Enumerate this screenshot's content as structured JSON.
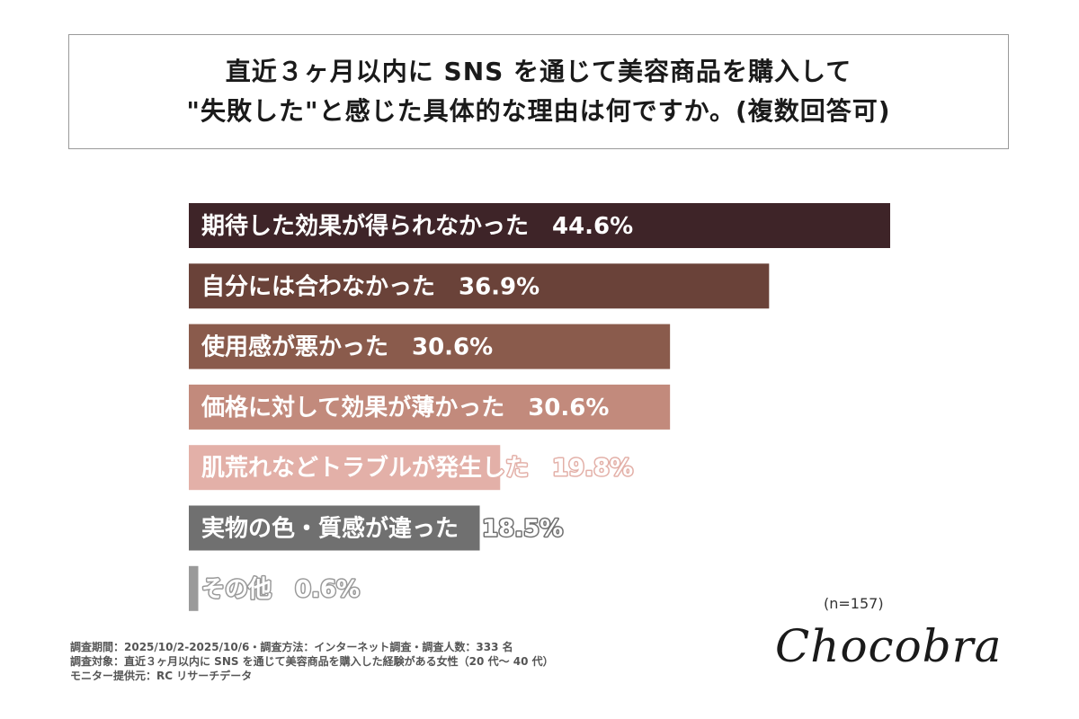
{
  "title": {
    "line1": "直近３ヶ月以内に SNS を通じて美容商品を購入して",
    "line2": "\"失敗した\"と感じた具体的な理由は何ですか。(複数回答可)"
  },
  "chart_data": {
    "type": "bar",
    "orientation": "horizontal",
    "categories": [
      "期待した効果が得られなかった",
      "自分には合わなかった",
      "使用感が悪かった",
      "価格に対して効果が薄かった",
      "肌荒れなどトラブルが発生した",
      "実物の色・質感が違った",
      "その他"
    ],
    "values": [
      44.6,
      36.9,
      30.6,
      30.6,
      19.8,
      18.5,
      0.6
    ],
    "value_suffix": "%",
    "colors": [
      "#3e2428",
      "#6a4239",
      "#8a5b4c",
      "#c28a7c",
      "#e3b0a8",
      "#707070",
      "#9a9a9a"
    ],
    "grid": false,
    "legend": "none"
  },
  "sample_size": "(n=157)",
  "brand": "Chocobra",
  "footnotes": [
    "調査期間：2025/10/2-2025/10/6・調査方法：インターネット調査・調査人数：333 名",
    "調査対象：直近３ヶ月以内に SNS を通じて美容商品を購入した経験がある女性（20 代～ 40 代）",
    "モニター提供元：RC リサーチデータ"
  ]
}
